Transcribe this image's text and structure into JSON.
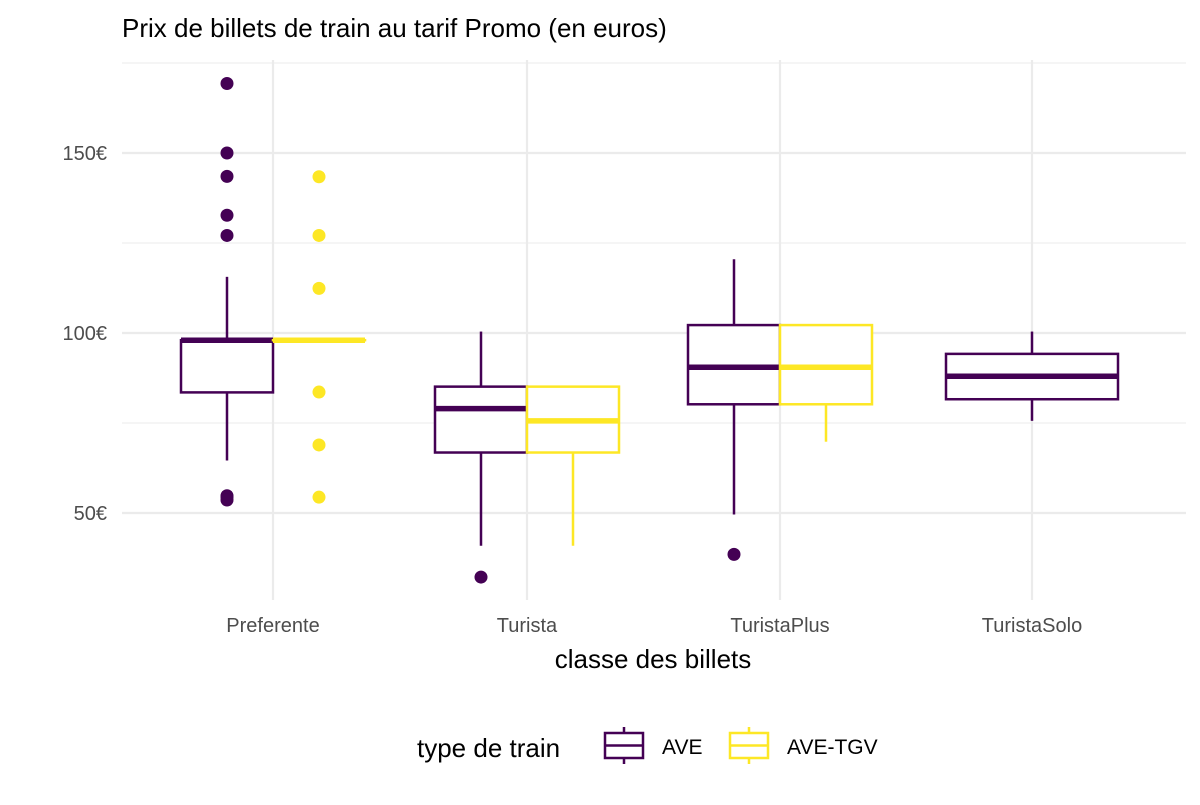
{
  "chart_data": {
    "type": "boxplot",
    "title": "Prix de billets de train au tarif Promo (en euros)",
    "xlabel": "classe des billets",
    "ylabel": "",
    "ylim": [
      27,
      177
    ],
    "y_ticks": [
      50,
      100,
      150
    ],
    "y_tick_labels": [
      "50€",
      "100€",
      "150€"
    ],
    "y_minor_ticks": [
      75,
      125,
      175
    ],
    "grid": true,
    "categories": [
      "Preferente",
      "Turista",
      "TuristaPlus",
      "TuristaSolo"
    ],
    "legend": {
      "title": "type de train",
      "position": "bottom"
    },
    "series": [
      {
        "name": "AVE",
        "color": "#440154",
        "boxes": [
          {
            "category": "Preferente",
            "min": 64.6,
            "q1": 83.5,
            "median": 98.0,
            "q3": 98.0,
            "max": 115.6,
            "outliers": [
              169.3,
              150.0,
              143.5,
              132.7,
              127.1,
              54.8,
              54.4,
              53.6
            ]
          },
          {
            "category": "Turista",
            "min": 40.9,
            "q1": 66.8,
            "median": 79.0,
            "q3": 85.1,
            "max": 100.4,
            "outliers": [
              32.2
            ]
          },
          {
            "category": "TuristaPlus",
            "min": 49.6,
            "q1": 80.2,
            "median": 90.5,
            "q3": 102.2,
            "max": 120.5,
            "outliers": [
              38.5
            ]
          },
          {
            "category": "TuristaSolo",
            "min": 75.6,
            "q1": 81.6,
            "median": 88.0,
            "q3": 94.2,
            "max": 100.4,
            "outliers": []
          }
        ]
      },
      {
        "name": "AVE-TGV",
        "color": "#fde725",
        "boxes": [
          {
            "category": "Preferente",
            "min": 98.0,
            "q1": 98.0,
            "median": 98.0,
            "q3": 98.0,
            "max": 98.0,
            "outliers": [
              143.4,
              127.1,
              112.4,
              83.6,
              68.9,
              54.4
            ]
          },
          {
            "category": "Turista",
            "min": 40.9,
            "q1": 66.8,
            "median": 75.6,
            "q3": 85.1,
            "max": 85.1,
            "outliers": []
          },
          {
            "category": "TuristaPlus",
            "min": 69.8,
            "q1": 80.2,
            "median": 90.5,
            "q3": 102.2,
            "max": 102.2,
            "outliers": []
          }
        ]
      }
    ]
  }
}
